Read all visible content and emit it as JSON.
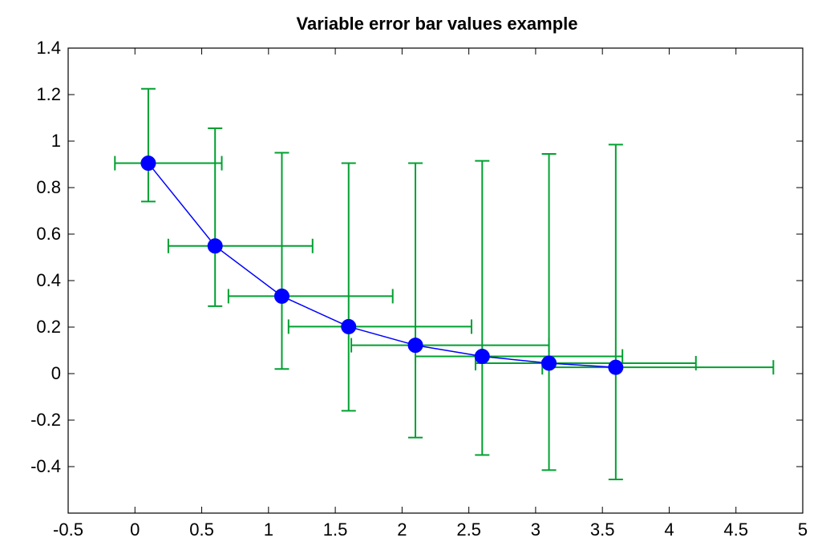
{
  "chart_data": {
    "type": "scatter",
    "title": "Variable error bar values example",
    "xlabel": "",
    "ylabel": "",
    "xlim": [
      -0.5,
      5
    ],
    "ylim": [
      -0.6,
      1.4
    ],
    "x_ticks": [
      -0.5,
      0,
      0.5,
      1,
      1.5,
      2,
      2.5,
      3,
      3.5,
      4,
      4.5,
      5
    ],
    "x_tick_labels": [
      "-0.5",
      "0",
      "0.5",
      "1",
      "1.5",
      "2",
      "2.5",
      "3",
      "3.5",
      "4",
      "4.5",
      "5"
    ],
    "y_ticks": [
      -0.4,
      -0.2,
      0,
      0.2,
      0.4,
      0.6,
      0.8,
      1,
      1.2,
      1.4
    ],
    "y_tick_labels": [
      "-0.4",
      "-0.2",
      "0",
      "0.2",
      "0.4",
      "0.6",
      "0.8",
      "1",
      "1.2",
      "1.4"
    ],
    "grid": false,
    "legend": "none",
    "series": [
      {
        "x": [
          0.1,
          0.6,
          1.1,
          1.6,
          2.1,
          2.6,
          3.1,
          3.6
        ],
        "y": [
          0.905,
          0.549,
          0.333,
          0.202,
          0.122,
          0.074,
          0.045,
          0.027
        ],
        "y_err_low": [
          0.74,
          0.29,
          0.02,
          -0.16,
          -0.275,
          -0.35,
          -0.415,
          -0.455
        ],
        "y_err_high": [
          1.225,
          1.055,
          0.95,
          0.905,
          0.905,
          0.915,
          0.945,
          0.985
        ],
        "x_err_low": [
          -0.15,
          0.25,
          0.7,
          1.15,
          1.62,
          2.1,
          2.55,
          3.05
        ],
        "x_err_high": [
          0.65,
          1.33,
          1.93,
          2.52,
          3.1,
          3.65,
          4.2,
          4.78
        ],
        "line_color": "#0000ff",
        "marker_color": "#0000ff",
        "error_color": "#00a030"
      }
    ]
  }
}
